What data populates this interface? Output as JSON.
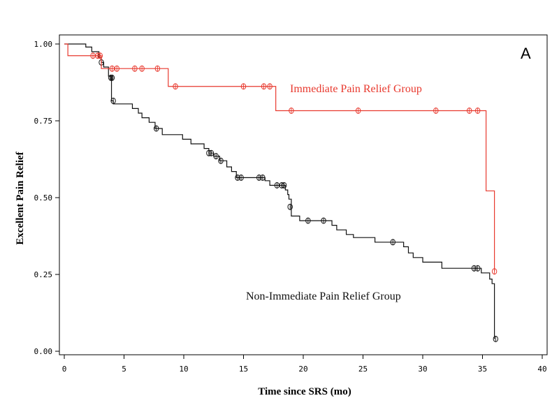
{
  "chart_data": {
    "type": "line",
    "panel_label": "A",
    "xlabel": "Time since SRS (mo)",
    "ylabel": "Excellent  Pain  Relief",
    "xlim": [
      0,
      40
    ],
    "ylim": [
      0,
      1
    ],
    "x_ticks": [
      "0",
      "5",
      "10",
      "15",
      "20",
      "25",
      "30",
      "35",
      "40"
    ],
    "y_ticks": [
      "0.00",
      "0.25",
      "0.50",
      "0.75",
      "1.00"
    ],
    "grid": false,
    "step": true,
    "series": [
      {
        "name": "Immediate Pain Relief Group",
        "color": "#e8392e",
        "steps": [
          [
            0,
            1.0
          ],
          [
            0.3,
            0.962
          ],
          [
            3.0,
            0.962
          ],
          [
            3.1,
            0.92
          ],
          [
            8.6,
            0.92
          ],
          [
            8.7,
            0.862
          ],
          [
            17.6,
            0.862
          ],
          [
            17.7,
            0.783
          ],
          [
            35.2,
            0.783
          ],
          [
            35.3,
            0.522
          ],
          [
            36.0,
            0.522
          ],
          [
            36.0,
            0.26
          ]
        ],
        "censored": [
          [
            2.4,
            0.962
          ],
          [
            2.8,
            0.962
          ],
          [
            3.0,
            0.962
          ],
          [
            4.0,
            0.92
          ],
          [
            4.4,
            0.92
          ],
          [
            5.9,
            0.92
          ],
          [
            6.5,
            0.92
          ],
          [
            7.8,
            0.92
          ],
          [
            9.3,
            0.862
          ],
          [
            15.0,
            0.862
          ],
          [
            16.7,
            0.862
          ],
          [
            17.2,
            0.862
          ],
          [
            19.0,
            0.783
          ],
          [
            24.6,
            0.783
          ],
          [
            31.1,
            0.783
          ],
          [
            33.9,
            0.783
          ],
          [
            34.6,
            0.783
          ],
          [
            36.0,
            0.26
          ]
        ]
      },
      {
        "name": "Non-Immediate Pain Relief Group",
        "color": "#111111",
        "steps": [
          [
            0,
            1.0
          ],
          [
            1.8,
            1.0
          ],
          [
            1.8,
            0.99
          ],
          [
            2.3,
            0.99
          ],
          [
            2.3,
            0.975
          ],
          [
            2.9,
            0.975
          ],
          [
            2.9,
            0.955
          ],
          [
            3.1,
            0.955
          ],
          [
            3.1,
            0.94
          ],
          [
            3.3,
            0.94
          ],
          [
            3.3,
            0.925
          ],
          [
            3.7,
            0.925
          ],
          [
            3.7,
            0.895
          ],
          [
            3.95,
            0.895
          ],
          [
            3.95,
            0.815
          ],
          [
            4.1,
            0.815
          ],
          [
            4.1,
            0.805
          ],
          [
            5.7,
            0.805
          ],
          [
            5.7,
            0.79
          ],
          [
            6.2,
            0.79
          ],
          [
            6.2,
            0.775
          ],
          [
            6.5,
            0.775
          ],
          [
            6.5,
            0.76
          ],
          [
            7.1,
            0.76
          ],
          [
            7.1,
            0.745
          ],
          [
            7.6,
            0.745
          ],
          [
            7.6,
            0.725
          ],
          [
            8.2,
            0.725
          ],
          [
            8.2,
            0.705
          ],
          [
            9.9,
            0.705
          ],
          [
            9.9,
            0.69
          ],
          [
            10.6,
            0.69
          ],
          [
            10.6,
            0.675
          ],
          [
            11.7,
            0.675
          ],
          [
            11.7,
            0.66
          ],
          [
            12.1,
            0.66
          ],
          [
            12.1,
            0.645
          ],
          [
            12.5,
            0.645
          ],
          [
            12.5,
            0.635
          ],
          [
            13.0,
            0.635
          ],
          [
            13.0,
            0.62
          ],
          [
            13.6,
            0.62
          ],
          [
            13.6,
            0.6
          ],
          [
            14.0,
            0.6
          ],
          [
            14.0,
            0.585
          ],
          [
            14.4,
            0.585
          ],
          [
            14.4,
            0.565
          ],
          [
            16.8,
            0.565
          ],
          [
            16.8,
            0.555
          ],
          [
            17.2,
            0.555
          ],
          [
            17.2,
            0.54
          ],
          [
            18.5,
            0.54
          ],
          [
            18.5,
            0.525
          ],
          [
            18.7,
            0.525
          ],
          [
            18.7,
            0.51
          ],
          [
            18.8,
            0.51
          ],
          [
            18.8,
            0.495
          ],
          [
            19.0,
            0.495
          ],
          [
            19.0,
            0.44
          ],
          [
            19.7,
            0.44
          ],
          [
            19.7,
            0.425
          ],
          [
            22.4,
            0.425
          ],
          [
            22.4,
            0.41
          ],
          [
            22.8,
            0.41
          ],
          [
            22.8,
            0.395
          ],
          [
            23.6,
            0.395
          ],
          [
            23.6,
            0.38
          ],
          [
            24.2,
            0.38
          ],
          [
            24.2,
            0.37
          ],
          [
            26.0,
            0.37
          ],
          [
            26.0,
            0.355
          ],
          [
            28.4,
            0.355
          ],
          [
            28.4,
            0.34
          ],
          [
            28.8,
            0.34
          ],
          [
            28.8,
            0.32
          ],
          [
            29.2,
            0.32
          ],
          [
            29.2,
            0.305
          ],
          [
            30.0,
            0.305
          ],
          [
            30.0,
            0.29
          ],
          [
            31.6,
            0.29
          ],
          [
            31.6,
            0.27
          ],
          [
            34.9,
            0.27
          ],
          [
            34.9,
            0.255
          ],
          [
            35.6,
            0.255
          ],
          [
            35.6,
            0.235
          ],
          [
            35.8,
            0.235
          ],
          [
            35.8,
            0.22
          ],
          [
            36.0,
            0.22
          ],
          [
            36.0,
            0.04
          ]
        ],
        "censored": [
          [
            3.1,
            0.94
          ],
          [
            3.9,
            0.89
          ],
          [
            4.0,
            0.89
          ],
          [
            4.1,
            0.815
          ],
          [
            7.7,
            0.725
          ],
          [
            12.1,
            0.645
          ],
          [
            12.3,
            0.645
          ],
          [
            12.7,
            0.635
          ],
          [
            13.1,
            0.62
          ],
          [
            14.5,
            0.565
          ],
          [
            14.8,
            0.565
          ],
          [
            16.3,
            0.565
          ],
          [
            16.6,
            0.565
          ],
          [
            17.8,
            0.54
          ],
          [
            18.2,
            0.54
          ],
          [
            18.4,
            0.54
          ],
          [
            18.9,
            0.47
          ],
          [
            20.4,
            0.425
          ],
          [
            21.7,
            0.425
          ],
          [
            27.5,
            0.355
          ],
          [
            34.3,
            0.27
          ],
          [
            34.6,
            0.27
          ],
          [
            36.1,
            0.04
          ]
        ]
      }
    ],
    "annotations": [
      {
        "text": "Immediate Pain Relief Group",
        "color": "#e8392e"
      },
      {
        "text": "Non-Immediate Pain Relief Group",
        "color": "#111111"
      }
    ]
  }
}
